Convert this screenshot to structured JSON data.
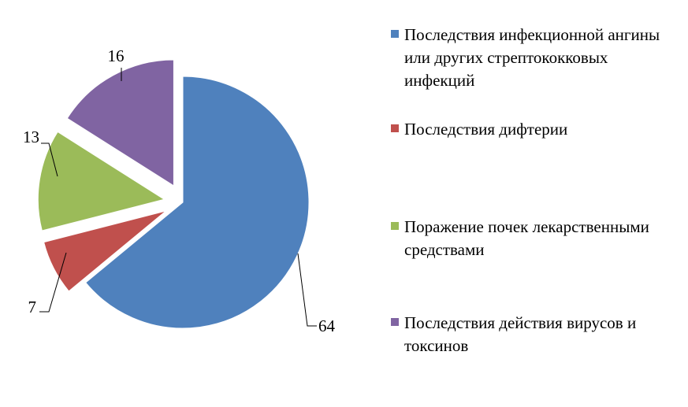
{
  "chart_data": {
    "type": "pie",
    "exploded": true,
    "categories": [
      "Последствия инфекционной ангины или других стрептококковых инфекций",
      "Последствия дифтерии",
      "Поражение почек лекарственными средствами",
      "Последствия действия вирусов и токсинов"
    ],
    "values": [
      64,
      7,
      13,
      16
    ],
    "data_labels": [
      "64",
      "7",
      "13",
      "16"
    ],
    "colors": [
      "#4F81BD",
      "#C0504D",
      "#9BBB59",
      "#8064A2"
    ],
    "legend_position": "right",
    "title": ""
  }
}
